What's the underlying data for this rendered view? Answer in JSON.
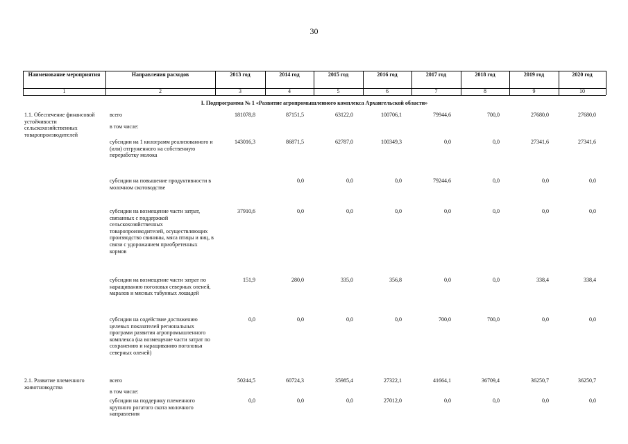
{
  "page_number": "30",
  "table": {
    "header": [
      "Наименование мероприятия",
      "Направления расходов",
      "2013 год",
      "2014 год",
      "2015 год",
      "2016 год",
      "2017 год",
      "2018 год",
      "2019 год",
      "2020 год"
    ],
    "column_numbers": [
      "1",
      "2",
      "3",
      "4",
      "5",
      "6",
      "7",
      "8",
      "9",
      "10"
    ],
    "section_title": "I. Подпрограмма № 1 «Развитие агропромышленного комплекса Архангельской области»",
    "groups": [
      {
        "name": "1.1. Обеспечение финансовой устойчивости сельскохозяйственных товаропроизводителей",
        "rows": [
          {
            "direction": "всего",
            "values": [
              "181078,8",
              "87151,5",
              "63122,0",
              "100706,1",
              "79944,6",
              "700,0",
              "27680,0",
              "27680,0"
            ]
          },
          {
            "direction": "в том числе:",
            "values": [
              null,
              null,
              null,
              null,
              null,
              null,
              null,
              null
            ]
          },
          {
            "direction": "субсидии на 1 килограмм реализованного и (или) отгруженного на собственную переработку молока",
            "values": [
              "143016,3",
              "86871,5",
              "62787,0",
              "100349,3",
              "0,0",
              "0,0",
              "27341,6",
              "27341,6"
            ]
          },
          {
            "direction": "субсидии на повышение продуктивности в молочном скотоводстве",
            "values": [
              null,
              "0,0",
              "0,0",
              "0,0",
              "79244,6",
              "0,0",
              "0,0",
              "0,0"
            ]
          },
          {
            "direction": "субсидии на возмещение части затрат, связанных с поддержкой сельскохозяйственных товаропроизводителей, осуществляющих производство свинины, мяса птицы и яиц, в связи с удорожанием приобретенных кормов",
            "values": [
              "37910,6",
              "0,0",
              "0,0",
              "0,0",
              "0,0",
              "0,0",
              "0,0",
              "0,0"
            ]
          },
          {
            "direction": "субсидии на возмещение части затрат по наращиванию поголовья северных оленей, маралов и мясных табунных лошадей",
            "values": [
              "151,9",
              "280,0",
              "335,0",
              "356,8",
              "0,0",
              "0,0",
              "338,4",
              "338,4"
            ]
          },
          {
            "direction": "субсидии на содействие достижению целевых показателей региональных программ развития агропромышленного комплекса (на возмещение части затрат по сохранению и наращиванию поголовья северных оленей)",
            "values": [
              "0,0",
              "0,0",
              "0,0",
              "0,0",
              "700,0",
              "700,0",
              "0,0",
              "0,0"
            ]
          }
        ]
      },
      {
        "name": "2.1. Развитие племенного животноводства",
        "rows": [
          {
            "direction": "всего",
            "values": [
              "50244,5",
              "60724,3",
              "35985,4",
              "27322,1",
              "41664,1",
              "36709,4",
              "36250,7",
              "36250,7"
            ]
          },
          {
            "direction": "в том числе:",
            "values": [
              null,
              null,
              null,
              null,
              null,
              null,
              null,
              null
            ]
          },
          {
            "direction": "субсидии на поддержку племенного крупного рогатого скота молочного направления",
            "values": [
              "0,0",
              "0,0",
              "0,0",
              "27012,0",
              "0,0",
              "0,0",
              "0,0",
              "0,0"
            ]
          }
        ]
      }
    ]
  }
}
